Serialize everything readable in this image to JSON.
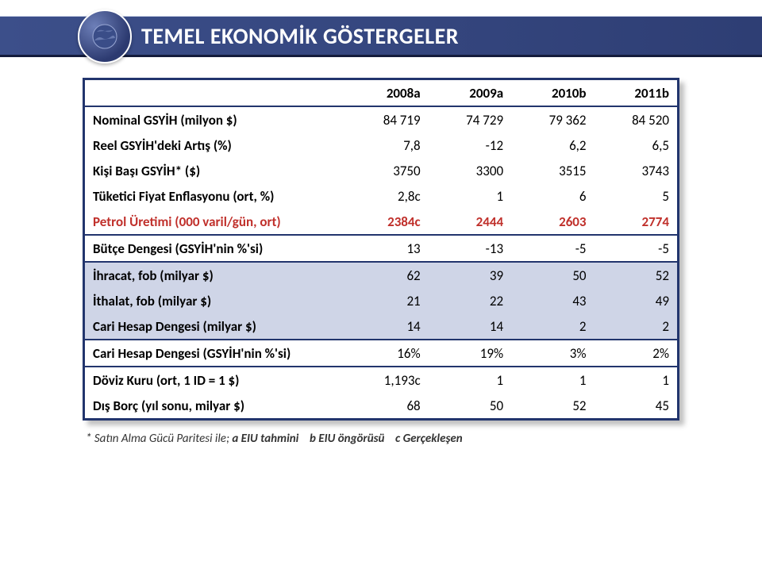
{
  "header": {
    "title": "TEMEL EKONOMİK GÖSTERGELER"
  },
  "table": {
    "columns": [
      "2008a",
      "2009a",
      "2010b",
      "2011b"
    ],
    "rows": [
      {
        "label": "Nominal GSYİH (milyon $)",
        "values": [
          "84 719",
          "74 729",
          "79 362",
          "84 520"
        ],
        "shade": false,
        "sep": false,
        "red": false
      },
      {
        "label": "Reel GSYİH'deki Artış (%)",
        "values": [
          "7,8",
          "-12",
          "6,2",
          "6,5"
        ],
        "shade": false,
        "sep": false,
        "red": false
      },
      {
        "label": "Kişi Başı GSYİH* ($)",
        "values": [
          "3750",
          "3300",
          "3515",
          "3743"
        ],
        "shade": false,
        "sep": false,
        "red": false
      },
      {
        "label": "Tüketici Fiyat Enflasyonu (ort, %)",
        "values": [
          "2,8c",
          "1",
          "6",
          "5"
        ],
        "shade": false,
        "sep": false,
        "red": false
      },
      {
        "label": "Petrol Üretimi (000 varil/gün, ort)",
        "values": [
          "2384c",
          "2444",
          "2603",
          "2774"
        ],
        "shade": false,
        "sep": true,
        "red": true
      },
      {
        "label": "Bütçe Dengesi (GSYİH'nin %'si)",
        "values": [
          "13",
          "-13",
          "-5",
          "-5"
        ],
        "shade": false,
        "sep": true,
        "red": false
      },
      {
        "label": "İhracat, fob (milyar $)",
        "values": [
          "62",
          "39",
          "50",
          "52"
        ],
        "shade": true,
        "sep": false,
        "red": false
      },
      {
        "label": "İthalat, fob (milyar $)",
        "values": [
          "21",
          "22",
          "43",
          "49"
        ],
        "shade": true,
        "sep": false,
        "red": false
      },
      {
        "label": "Cari Hesap Dengesi (milyar $)",
        "values": [
          "14",
          "14",
          "2",
          "2"
        ],
        "shade": true,
        "sep": true,
        "red": false
      },
      {
        "label": "Cari Hesap Dengesi (GSYİH'nin %'si)",
        "values": [
          "16%",
          "19%",
          "3%",
          "2%"
        ],
        "shade": false,
        "sep": true,
        "red": false
      },
      {
        "label": "Döviz Kuru (ort, 1 ID = 1 $)",
        "values": [
          "1,193c",
          "1",
          "1",
          "1"
        ],
        "shade": false,
        "sep": false,
        "red": false
      },
      {
        "label": "Dış Borç (yıl sonu, milyar $)",
        "values": [
          "68",
          "50",
          "52",
          "45"
        ],
        "shade": false,
        "sep": false,
        "red": false
      }
    ]
  },
  "footnote": {
    "star": "* Satın Alma Gücü Paritesi ile;",
    "a": "a EIU tahmini",
    "b": "b EIU öngörüsü",
    "c": "c Gerçekleşen"
  },
  "colors": {
    "header_bg": "#2e3e74",
    "border": "#22356d",
    "shade": "#cfd5e7",
    "red": "#c0302b"
  }
}
